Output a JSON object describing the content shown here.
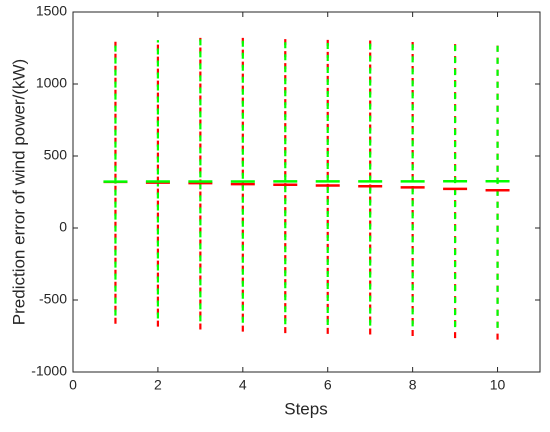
{
  "chart_data": {
    "type": "errorbar",
    "xlabel": "Steps",
    "ylabel": "Prediction error of wind power/(kW)",
    "x": [
      1,
      2,
      3,
      4,
      5,
      6,
      7,
      8,
      9,
      10
    ],
    "xlim": [
      0,
      11
    ],
    "xticks": [
      0,
      2,
      4,
      6,
      8,
      10
    ],
    "ylim": [
      -1000,
      1500
    ],
    "yticks": [
      -1000,
      -500,
      0,
      500,
      1000,
      1500
    ],
    "series": [
      {
        "color": "#ff0000",
        "values": [
          320,
          315,
          312,
          305,
          300,
          295,
          290,
          282,
          272,
          262
        ],
        "low": [
          -665,
          -685,
          -705,
          -720,
          -730,
          -735,
          -740,
          -750,
          -765,
          -775
        ],
        "high": [
          1300,
          1310,
          1320,
          1320,
          1325,
          1320,
          1315,
          1310,
          1305,
          1300
        ]
      },
      {
        "color": "#00ff00",
        "values": [
          322,
          323,
          323,
          323,
          324,
          324,
          324,
          324,
          325,
          325
        ],
        "low": [
          -650,
          -670,
          -690,
          -700,
          -710,
          -715,
          -720,
          -725,
          -730,
          -735
        ],
        "high": [
          1300,
          1305,
          1310,
          1315,
          1320,
          1315,
          1310,
          1305,
          1300,
          1295
        ]
      }
    ]
  }
}
